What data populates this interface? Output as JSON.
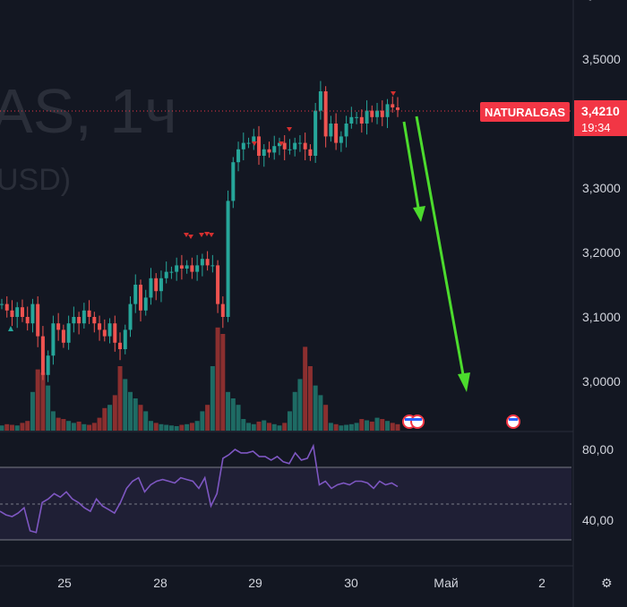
{
  "chart_data": {
    "type": "candlestick",
    "symbol_watermark": "AS, 1ч",
    "currency_watermark": "USD)",
    "symbol": "NATURALGAS",
    "last_price": "3,4210",
    "countdown": "19:34",
    "price_axis": {
      "ticks": [
        {
          "value": 3.5,
          "label": "3,5000"
        },
        {
          "value": 3.3,
          "label": "3,3000"
        },
        {
          "value": 3.2,
          "label": "3,2000"
        },
        {
          "value": 3.1,
          "label": "3,1000"
        },
        {
          "value": 3.0,
          "label": "3,0000"
        }
      ],
      "range": [
        2.92,
        3.54
      ]
    },
    "rsi_axis": {
      "ticks": [
        {
          "value": 80,
          "label": "80,00"
        },
        {
          "value": 40,
          "label": "40,00"
        }
      ],
      "range": [
        25,
        88
      ],
      "band": [
        30,
        70
      ],
      "midline": 50
    },
    "time_axis": {
      "ticks": [
        "25",
        "28",
        "29",
        "30",
        "Май",
        "2"
      ]
    },
    "close_series": [
      3.12,
      3.11,
      3.1,
      3.115,
      3.1,
      3.09,
      3.12,
      3.07,
      3.01,
      3.04,
      3.09,
      3.08,
      3.06,
      3.09,
      3.1,
      3.09,
      3.11,
      3.1,
      3.09,
      3.08,
      3.07,
      3.09,
      3.06,
      3.05,
      3.08,
      3.12,
      3.15,
      3.11,
      3.13,
      3.16,
      3.14,
      3.16,
      3.17,
      3.17,
      3.18,
      3.175,
      3.18,
      3.17,
      3.18,
      3.19,
      3.18,
      3.18,
      3.12,
      3.1,
      3.28,
      3.34,
      3.36,
      3.37,
      3.37,
      3.38,
      3.35,
      3.36,
      3.355,
      3.365,
      3.37,
      3.36,
      3.36,
      3.37,
      3.37,
      3.36,
      3.35,
      3.42,
      3.45,
      3.38,
      3.4,
      3.37,
      3.38,
      3.4,
      3.41,
      3.41,
      3.4,
      3.42,
      3.41,
      3.42,
      3.41,
      3.43,
      3.425,
      3.421
    ],
    "volume_series": [
      8,
      10,
      9,
      8,
      12,
      15,
      60,
      95,
      90,
      70,
      30,
      20,
      18,
      15,
      12,
      14,
      10,
      9,
      12,
      20,
      35,
      40,
      55,
      100,
      80,
      60,
      50,
      40,
      30,
      15,
      12,
      10,
      9,
      8,
      7,
      9,
      10,
      12,
      15,
      30,
      40,
      100,
      160,
      150,
      60,
      50,
      40,
      18,
      12,
      10,
      14,
      16,
      12,
      10,
      8,
      12,
      30,
      60,
      80,
      130,
      100,
      70,
      55,
      40,
      12,
      10,
      8,
      9,
      10,
      12,
      18,
      16,
      14,
      20,
      18,
      15,
      12,
      10
    ],
    "rsi_series": [
      45,
      43,
      42,
      44,
      47,
      34,
      33,
      50,
      52,
      55,
      53,
      56,
      52,
      50,
      47,
      45,
      52,
      48,
      46,
      44,
      50,
      58,
      62,
      64,
      56,
      60,
      62,
      63,
      62,
      61,
      64,
      63,
      62,
      58,
      64,
      48,
      55,
      75,
      77,
      80,
      78,
      78,
      79,
      76,
      76,
      74,
      76,
      73,
      72,
      78,
      74,
      75,
      82,
      60,
      62,
      58,
      60,
      61,
      60,
      62,
      62,
      61,
      58,
      62,
      60,
      61,
      59
    ]
  }
}
